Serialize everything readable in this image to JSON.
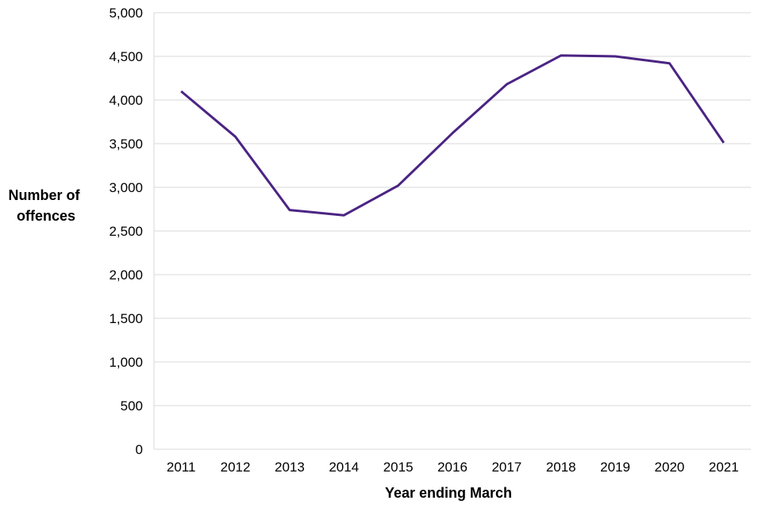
{
  "chart_data": {
    "type": "line",
    "title": "",
    "xlabel": "Year ending March",
    "ylabel_lines": [
      "Number of",
      "offences"
    ],
    "ylim": [
      0,
      5000
    ],
    "yticks": [
      0,
      500,
      1000,
      1500,
      2000,
      2500,
      3000,
      3500,
      4000,
      4500,
      5000
    ],
    "ytick_labels": [
      "0",
      "500",
      "1,000",
      "1,500",
      "2,000",
      "2,500",
      "3,000",
      "3,500",
      "4,000",
      "4,500",
      "5,000"
    ],
    "categories": [
      "2011",
      "2012",
      "2013",
      "2014",
      "2015",
      "2016",
      "2017",
      "2018",
      "2019",
      "2020",
      "2021"
    ],
    "series": [
      {
        "values": [
          4100,
          3580,
          2740,
          2680,
          3020,
          3620,
          4180,
          4510,
          4500,
          4420,
          3510
        ]
      }
    ],
    "grid": true,
    "legend": "none",
    "colors": {
      "line": "#4b2483",
      "grid": "#d9d9d9",
      "axis": "#d9d9d9"
    }
  }
}
